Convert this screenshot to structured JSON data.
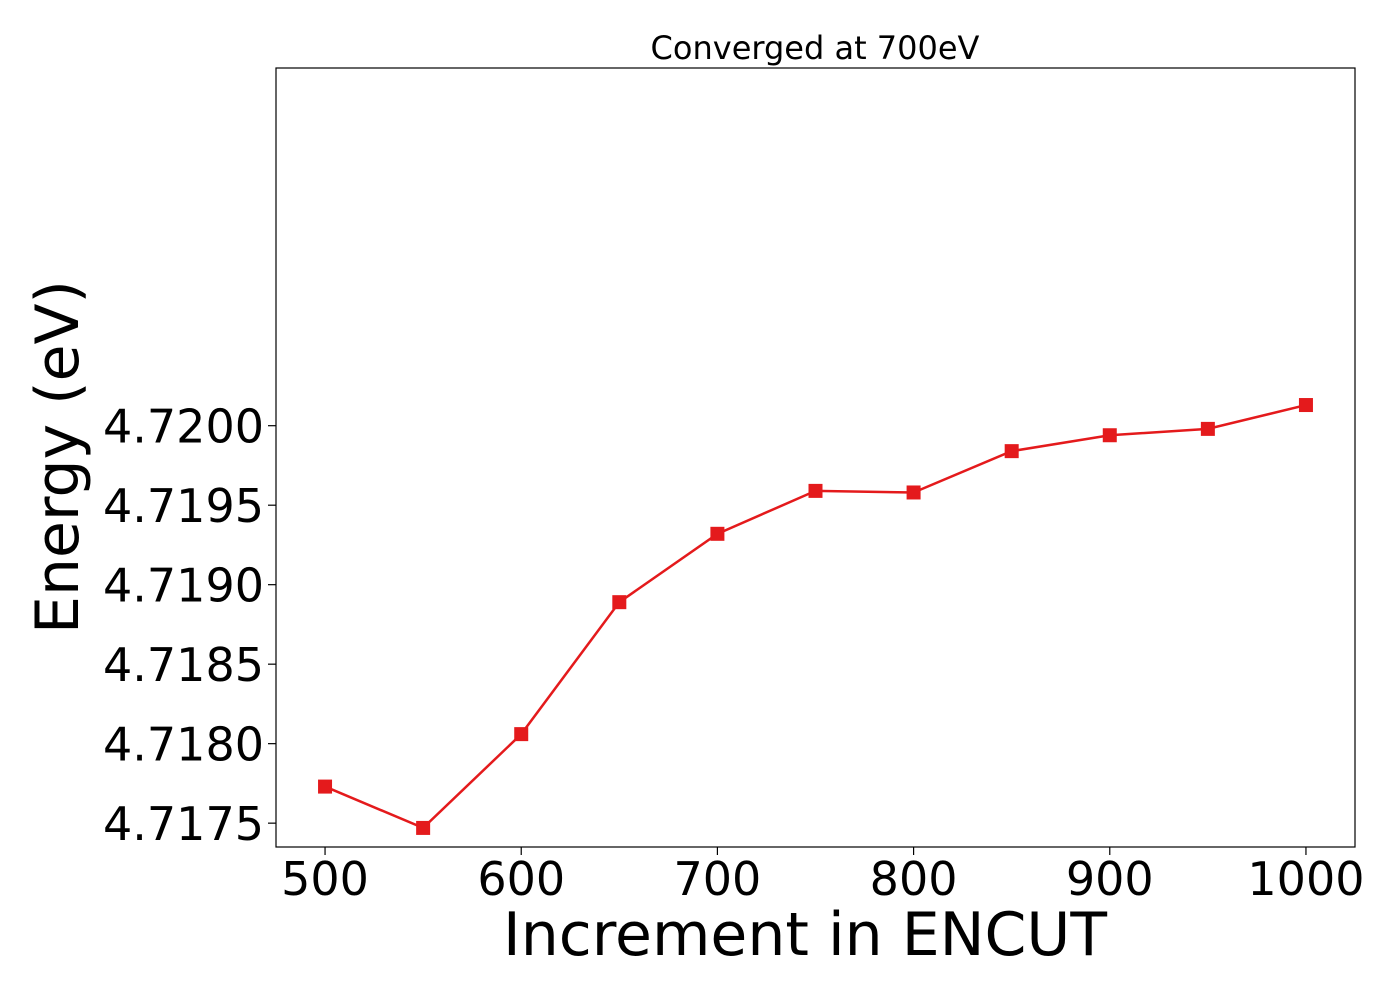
{
  "chart_data": {
    "type": "line",
    "title": "Converged at 700eV",
    "xlabel": "Increment in ENCUT",
    "ylabel": "Energy (eV)",
    "xlim": [
      475,
      1025
    ],
    "ylim": [
      4.71735,
      4.72225
    ],
    "xticks": [
      500,
      600,
      700,
      800,
      900,
      1000
    ],
    "xtick_labels": [
      "500",
      "600",
      "700",
      "800",
      "900",
      "1000"
    ],
    "yticks": [
      4.7175,
      4.718,
      4.7185,
      4.719,
      4.7195,
      4.72
    ],
    "ytick_labels": [
      "4.7175",
      "4.7180",
      "4.7185",
      "4.7190",
      "4.7195",
      "4.7200"
    ],
    "grid": false,
    "series": [
      {
        "color": "#e41a1c",
        "marker": "square",
        "x": [
          500,
          550,
          600,
          650,
          700,
          750,
          800,
          850,
          900,
          950,
          1000
        ],
        "y": [
          4.71773,
          4.71747,
          4.71806,
          4.71889,
          4.71932,
          4.71959,
          4.71958,
          4.71984,
          4.71994,
          4.71998,
          4.72013
        ]
      }
    ]
  }
}
